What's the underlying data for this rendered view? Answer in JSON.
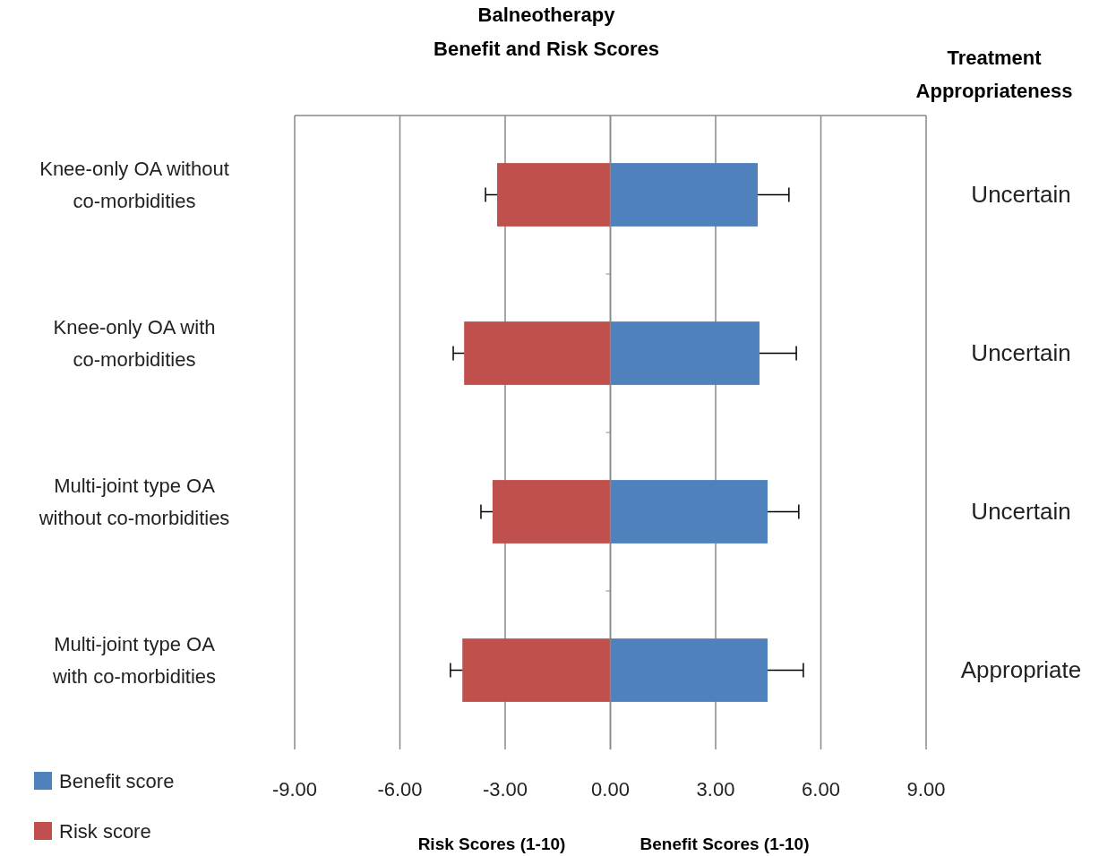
{
  "chart_data": {
    "type": "bar",
    "orientation": "horizontal",
    "stacked": true,
    "title": "Balneotherapy\nBenefit and Risk Scores",
    "categories": [
      "Knee-only OA without\nco-morbidities",
      "Knee-only OA with\nco-morbidities",
      "Multi-joint type OA\nwithout co-morbidities",
      "Multi-joint type OA\nwith co-morbidities"
    ],
    "y2label": "Treatment\nAppropriateness",
    "y2_categories": [
      "Uncertain",
      "Uncertain",
      "Uncertain",
      "Appropriate"
    ],
    "series": [
      {
        "name": "Benefit score",
        "color": "#4f81bd",
        "values": [
          4.2,
          4.25,
          4.48,
          4.48
        ],
        "errors": [
          [
            4.2,
            5.09
          ],
          [
            4.25,
            5.3
          ],
          [
            4.48,
            5.37
          ],
          [
            4.48,
            5.5
          ]
        ]
      },
      {
        "name": "Risk score",
        "color": "#c0504d",
        "values": [
          -3.23,
          -4.17,
          -3.36,
          -4.22
        ],
        "errors": [
          [
            -3.56,
            -3.23
          ],
          [
            -4.48,
            -4.17
          ],
          [
            -3.69,
            -3.36
          ],
          [
            -4.56,
            -4.22
          ]
        ]
      }
    ],
    "xlim": [
      -9,
      9
    ],
    "xticks": [
      {
        "value": -9,
        "label": "-9.00"
      },
      {
        "value": -6,
        "label": "-6.00"
      },
      {
        "value": -3,
        "label": "-3.00"
      },
      {
        "value": 0,
        "label": "0.00"
      },
      {
        "value": 3,
        "label": "3.00"
      },
      {
        "value": 6,
        "label": "6.00"
      },
      {
        "value": 9,
        "label": "9.00"
      }
    ],
    "xlabel": "Risk  Scores (1-10)",
    "annotations": [
      "Benefit Scores (1-10)"
    ],
    "grid": "x",
    "legend": "bottom left"
  }
}
